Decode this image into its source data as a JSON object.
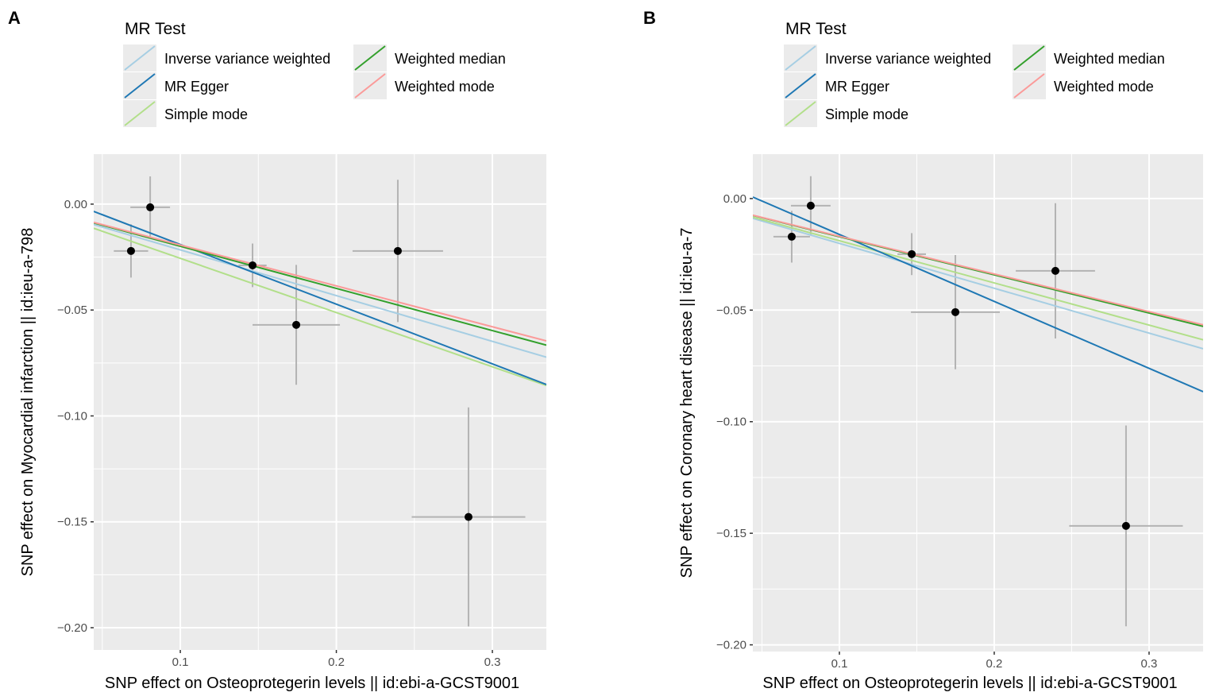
{
  "legend": {
    "title": "MR Test",
    "entries": [
      {
        "name": "Inverse variance weighted",
        "color": "#a6cee3"
      },
      {
        "name": "MR Egger",
        "color": "#1f78b4"
      },
      {
        "name": "Simple mode",
        "color": "#b2df8a"
      },
      {
        "name": "Weighted median",
        "color": "#33a02c"
      },
      {
        "name": "Weighted mode",
        "color": "#fb9a99"
      }
    ]
  },
  "chart_data": [
    {
      "panel_label": "A",
      "type": "scatter",
      "xlabel": "SNP effect on Osteoprotegerin levels || id:ebi-a-GCST9001",
      "ylabel": "SNP effect on Myocardial infarction || id:ieu-a-798",
      "xlim": [
        0.0445,
        0.3346
      ],
      "ylim": [
        -0.2105,
        0.0236
      ],
      "xticks": [
        0.1,
        0.2,
        0.3
      ],
      "xtick_labels": [
        "0.1",
        "0.2",
        "0.3"
      ],
      "yticks": [
        0.0,
        -0.05,
        -0.1,
        -0.15,
        -0.2
      ],
      "ytick_labels": [
        "0.00",
        "−0.05",
        "−0.10",
        "−0.15",
        "−0.20"
      ],
      "grid": true,
      "legend_position": "top",
      "points": [
        {
          "x": 0.0684,
          "y": -0.0221,
          "x_se": 0.011,
          "y_se": 0.0126
        },
        {
          "x": 0.0807,
          "y": -0.0015,
          "x_se": 0.0127,
          "y_se": 0.0146
        },
        {
          "x": 0.1463,
          "y": -0.0289,
          "x_se": 0.009,
          "y_se": 0.0103
        },
        {
          "x": 0.1743,
          "y": -0.057,
          "x_se": 0.028,
          "y_se": 0.0283
        },
        {
          "x": 0.2394,
          "y": -0.0221,
          "x_se": 0.029,
          "y_se": 0.0336
        },
        {
          "x": 0.2847,
          "y": -0.1477,
          "x_se": 0.0364,
          "y_se": 0.0517
        }
      ],
      "lines": [
        {
          "method": "Inverse variance weighted",
          "slope": -0.216,
          "intercept": 0.0
        },
        {
          "method": "Simple mode",
          "slope": -0.256,
          "intercept": 0.0
        },
        {
          "method": "MR Egger",
          "slope": -0.2817,
          "intercept": 0.0091
        },
        {
          "method": "Weighted median",
          "slope": -0.199,
          "intercept": 0.0
        },
        {
          "method": "Weighted mode",
          "slope": -0.193,
          "intercept": 0.0
        }
      ]
    },
    {
      "panel_label": "B",
      "type": "scatter",
      "xlabel": "SNP effect on Osteoprotegerin levels || id:ebi-a-GCST9001",
      "ylabel": "SNP effect on Coronary heart disease || id:ieu-a-7",
      "xlim": [
        0.0441,
        0.3349
      ],
      "ylim": [
        -0.203,
        0.0199
      ],
      "xticks": [
        0.1,
        0.2,
        0.3
      ],
      "xtick_labels": [
        "0.1",
        "0.2",
        "0.3"
      ],
      "yticks": [
        0.0,
        -0.05,
        -0.1,
        -0.15,
        -0.2
      ],
      "ytick_labels": [
        "0.00",
        "−0.05",
        "−0.10",
        "−0.15",
        "−0.20"
      ],
      "grid": true,
      "legend_position": "top",
      "points": [
        {
          "x": 0.0692,
          "y": -0.0171,
          "x_se": 0.0118,
          "y_se": 0.0116
        },
        {
          "x": 0.0815,
          "y": -0.0032,
          "x_se": 0.0128,
          "y_se": 0.0132
        },
        {
          "x": 0.1467,
          "y": -0.0249,
          "x_se": 0.0092,
          "y_se": 0.0094
        },
        {
          "x": 0.1749,
          "y": -0.0509,
          "x_se": 0.0287,
          "y_se": 0.0256
        },
        {
          "x": 0.2395,
          "y": -0.0324,
          "x_se": 0.0256,
          "y_se": 0.0303
        },
        {
          "x": 0.2851,
          "y": -0.1467,
          "x_se": 0.0367,
          "y_se": 0.045
        }
      ],
      "lines": [
        {
          "method": "Inverse variance weighted",
          "slope": -0.201,
          "intercept": 0.0
        },
        {
          "method": "Simple mode",
          "slope": -0.189,
          "intercept": 0.0
        },
        {
          "method": "MR Egger",
          "slope": -0.3,
          "intercept": 0.0139
        },
        {
          "method": "Weighted median",
          "slope": -0.171,
          "intercept": 0.0
        },
        {
          "method": "Weighted mode",
          "slope": -0.169,
          "intercept": 0.0
        }
      ]
    }
  ]
}
